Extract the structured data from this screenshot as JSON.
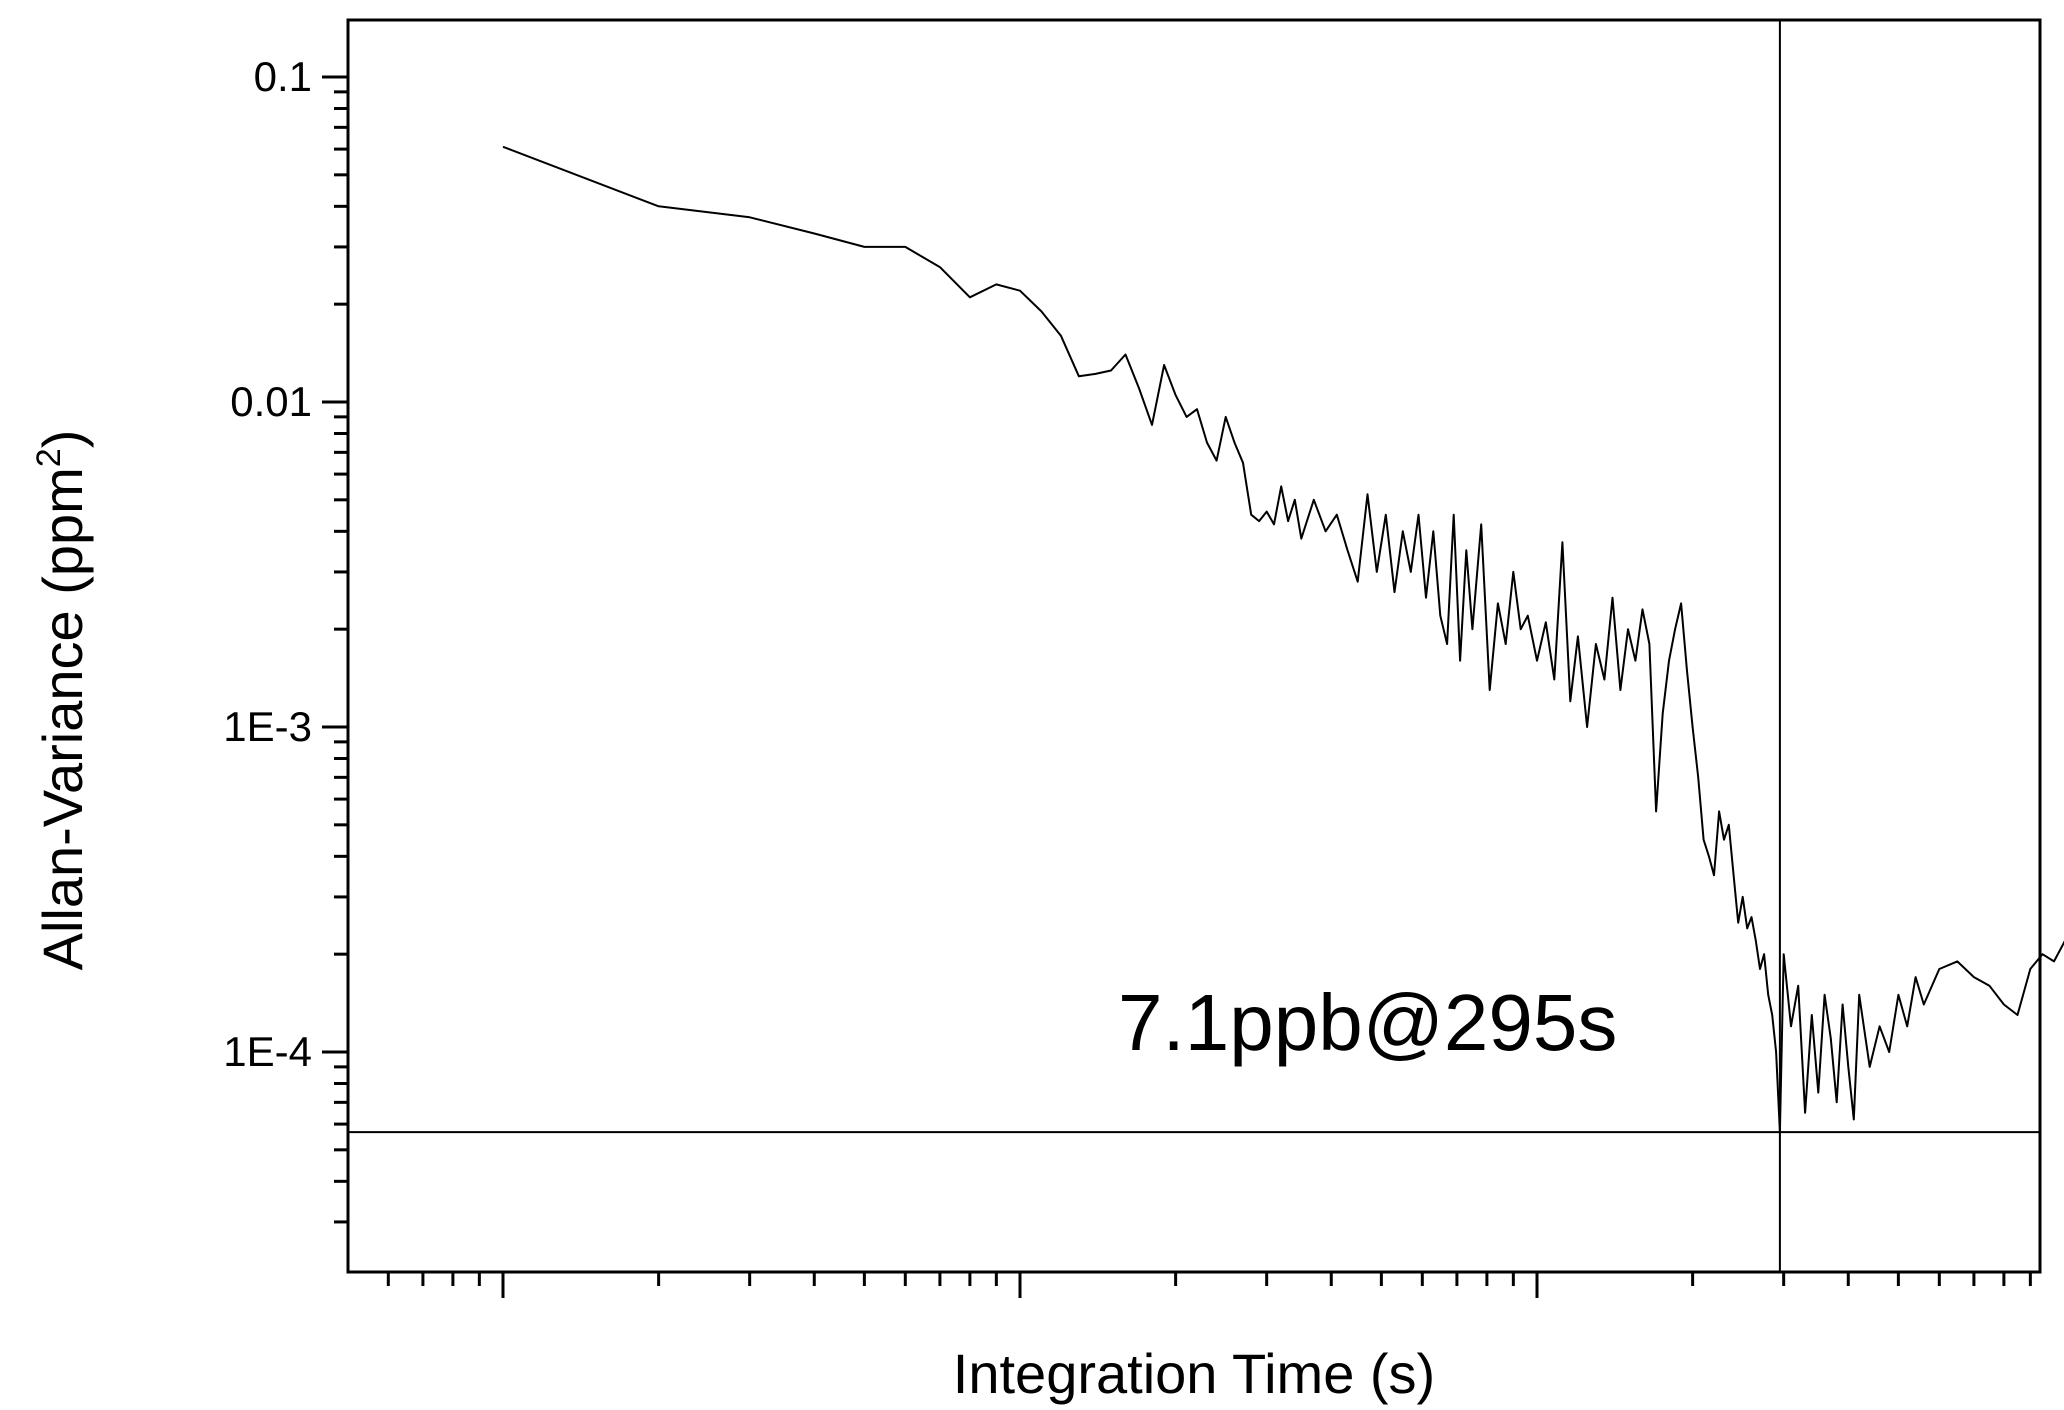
{
  "chart_data": {
    "type": "line",
    "title": "",
    "xlabel": "Integration Time (s)",
    "ylabel": "Allan-Variance (ppm",
    "ylabel_sup": "2",
    "ylabel_close": ")",
    "x_scale": "log",
    "y_scale": "log",
    "xlim": [
      0.5,
      5000
    ],
    "ylim": [
      2e-05,
      0.15
    ],
    "x_major_ticks": [
      1,
      10,
      100,
      1000
    ],
    "y_major_ticks": [
      {
        "value": 0.1,
        "label": "0.1"
      },
      {
        "value": 0.01,
        "label": "0.01"
      },
      {
        "value": 0.001,
        "label": "1E-3"
      },
      {
        "value": 0.0001,
        "label": "1E-4"
      }
    ],
    "annotation": {
      "text": "7.1ppb@295s",
      "x": 295,
      "y": 5.67e-05
    },
    "crosshair": {
      "x": 295,
      "y": 5.67e-05
    },
    "grid": false,
    "legend": "none",
    "line_color": "#000000",
    "series": [
      {
        "values": [
          [
            1,
            0.061
          ],
          [
            2,
            0.04
          ],
          [
            3,
            0.037
          ],
          [
            4,
            0.033
          ],
          [
            5,
            0.03
          ],
          [
            6,
            0.03
          ],
          [
            7,
            0.026
          ],
          [
            8,
            0.021
          ],
          [
            9,
            0.023
          ],
          [
            10,
            0.022
          ],
          [
            11,
            0.019
          ],
          [
            12,
            0.016
          ],
          [
            13,
            0.012
          ],
          [
            14,
            0.0122
          ],
          [
            15,
            0.0125
          ],
          [
            16,
            0.014
          ],
          [
            17,
            0.011
          ],
          [
            18,
            0.0085
          ],
          [
            19,
            0.013
          ],
          [
            20,
            0.0105
          ],
          [
            21,
            0.009
          ],
          [
            22,
            0.0095
          ],
          [
            23,
            0.0075
          ],
          [
            24,
            0.0066
          ],
          [
            25,
            0.009
          ],
          [
            26,
            0.0075
          ],
          [
            27,
            0.0065
          ],
          [
            28,
            0.0045
          ],
          [
            29,
            0.0043
          ],
          [
            30,
            0.0046
          ],
          [
            31,
            0.0042
          ],
          [
            32,
            0.0055
          ],
          [
            33,
            0.0043
          ],
          [
            34,
            0.005
          ],
          [
            35,
            0.0038
          ],
          [
            37,
            0.005
          ],
          [
            39,
            0.004
          ],
          [
            41,
            0.0045
          ],
          [
            43,
            0.0035
          ],
          [
            45,
            0.0028
          ],
          [
            47,
            0.0052
          ],
          [
            49,
            0.003
          ],
          [
            51,
            0.0045
          ],
          [
            53,
            0.0026
          ],
          [
            55,
            0.004
          ],
          [
            57,
            0.003
          ],
          [
            59,
            0.0045
          ],
          [
            61,
            0.0025
          ],
          [
            63,
            0.004
          ],
          [
            65,
            0.0022
          ],
          [
            67,
            0.0018
          ],
          [
            69,
            0.0045
          ],
          [
            71,
            0.0016
          ],
          [
            73,
            0.0035
          ],
          [
            75,
            0.002
          ],
          [
            78,
            0.0042
          ],
          [
            81,
            0.0013
          ],
          [
            84,
            0.0024
          ],
          [
            87,
            0.0018
          ],
          [
            90,
            0.003
          ],
          [
            93,
            0.002
          ],
          [
            96,
            0.0022
          ],
          [
            100,
            0.0016
          ],
          [
            104,
            0.0021
          ],
          [
            108,
            0.0014
          ],
          [
            112,
            0.0037
          ],
          [
            116,
            0.0012
          ],
          [
            120,
            0.0019
          ],
          [
            125,
            0.001
          ],
          [
            130,
            0.0018
          ],
          [
            135,
            0.0014
          ],
          [
            140,
            0.0025
          ],
          [
            145,
            0.0013
          ],
          [
            150,
            0.002
          ],
          [
            155,
            0.0016
          ],
          [
            160,
            0.0023
          ],
          [
            165,
            0.0018
          ],
          [
            170,
            0.00055
          ],
          [
            175,
            0.0011
          ],
          [
            180,
            0.0016
          ],
          [
            185,
            0.002
          ],
          [
            190,
            0.0024
          ],
          [
            195,
            0.0015
          ],
          [
            200,
            0.001
          ],
          [
            205,
            0.0007
          ],
          [
            210,
            0.00045
          ],
          [
            215,
            0.0004
          ],
          [
            220,
            0.00035
          ],
          [
            225,
            0.00055
          ],
          [
            230,
            0.00045
          ],
          [
            235,
            0.0005
          ],
          [
            240,
            0.00035
          ],
          [
            245,
            0.00025
          ],
          [
            250,
            0.0003
          ],
          [
            255,
            0.00024
          ],
          [
            260,
            0.00026
          ],
          [
            265,
            0.00022
          ],
          [
            270,
            0.00018
          ],
          [
            275,
            0.0002
          ],
          [
            280,
            0.00015
          ],
          [
            285,
            0.00013
          ],
          [
            290,
            0.0001
          ],
          [
            295,
            5.67e-05
          ],
          [
            300,
            0.0002
          ],
          [
            310,
            0.00012
          ],
          [
            320,
            0.00016
          ],
          [
            330,
            6.5e-05
          ],
          [
            340,
            0.00013
          ],
          [
            350,
            7.5e-05
          ],
          [
            360,
            0.00015
          ],
          [
            370,
            0.00011
          ],
          [
            380,
            7e-05
          ],
          [
            390,
            0.00014
          ],
          [
            400,
            9e-05
          ],
          [
            410,
            6.2e-05
          ],
          [
            420,
            0.00015
          ],
          [
            440,
            9e-05
          ],
          [
            460,
            0.00012
          ],
          [
            480,
            0.0001
          ],
          [
            500,
            0.00015
          ],
          [
            520,
            0.00012
          ],
          [
            540,
            0.00017
          ],
          [
            560,
            0.00014
          ],
          [
            600,
            0.00018
          ],
          [
            650,
            0.00019
          ],
          [
            700,
            0.00017
          ],
          [
            750,
            0.00016
          ],
          [
            800,
            0.00014
          ],
          [
            850,
            0.00013
          ],
          [
            900,
            0.00018
          ],
          [
            950,
            0.0002
          ],
          [
            1000,
            0.00019
          ],
          [
            1050,
            0.00022
          ],
          [
            1100,
            0.0003
          ],
          [
            1150,
            0.00033
          ],
          [
            1200,
            0.00022
          ],
          [
            1250,
            0.00017
          ]
        ]
      }
    ]
  }
}
